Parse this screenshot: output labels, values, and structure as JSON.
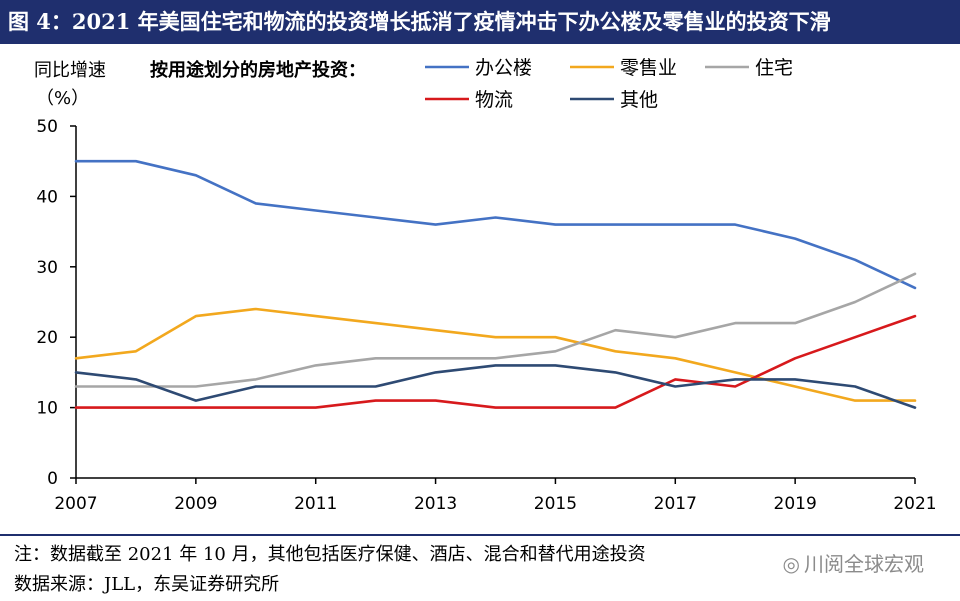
{
  "header": {
    "title": "图 4：2021 年美国住宅和物流的投资增长抵消了疫情冲击下办公楼及零售业的投资下滑"
  },
  "footer": {
    "note": "注：数据截至 2021 年 10 月，其他包括医疗保健、酒店、混合和替代用途投资",
    "source": "数据来源：JLL，东吴证券研究所"
  },
  "watermark": {
    "text": "川阅全球宏观",
    "icon": "wechat-icon"
  },
  "chart_data": {
    "type": "line",
    "title": "按用途划分的房地产投资：",
    "ylabel_line1": "同比增速",
    "ylabel_line2": "（%）",
    "xlabel": "",
    "x": [
      2007,
      2008,
      2009,
      2010,
      2011,
      2012,
      2013,
      2014,
      2015,
      2016,
      2017,
      2018,
      2019,
      2020,
      2021
    ],
    "x_ticks": [
      2007,
      2009,
      2011,
      2013,
      2015,
      2017,
      2019,
      2021
    ],
    "ylim": [
      0,
      50
    ],
    "y_ticks": [
      0,
      10,
      20,
      30,
      40,
      50
    ],
    "grid": false,
    "legend_position": "top",
    "series": [
      {
        "name": "办公楼",
        "color": "#4472C4",
        "values": [
          45,
          45,
          43,
          39,
          38,
          37,
          36,
          37,
          36,
          36,
          36,
          36,
          34,
          31,
          27
        ]
      },
      {
        "name": "零售业",
        "color": "#F2A81E",
        "values": [
          17,
          18,
          23,
          24,
          23,
          22,
          21,
          20,
          20,
          18,
          17,
          15,
          13,
          11,
          11
        ]
      },
      {
        "name": "住宅",
        "color": "#A6A6A6",
        "values": [
          13,
          13,
          13,
          14,
          16,
          17,
          17,
          17,
          18,
          21,
          20,
          22,
          22,
          25,
          29
        ]
      },
      {
        "name": "物流",
        "color": "#D7191C",
        "values": [
          10,
          10,
          10,
          10,
          10,
          11,
          11,
          10,
          10,
          10,
          14,
          13,
          17,
          20,
          23
        ]
      },
      {
        "name": "其他",
        "color": "#2E4A73",
        "values": [
          15,
          14,
          11,
          13,
          13,
          13,
          15,
          16,
          16,
          15,
          13,
          14,
          14,
          13,
          10
        ]
      }
    ]
  }
}
